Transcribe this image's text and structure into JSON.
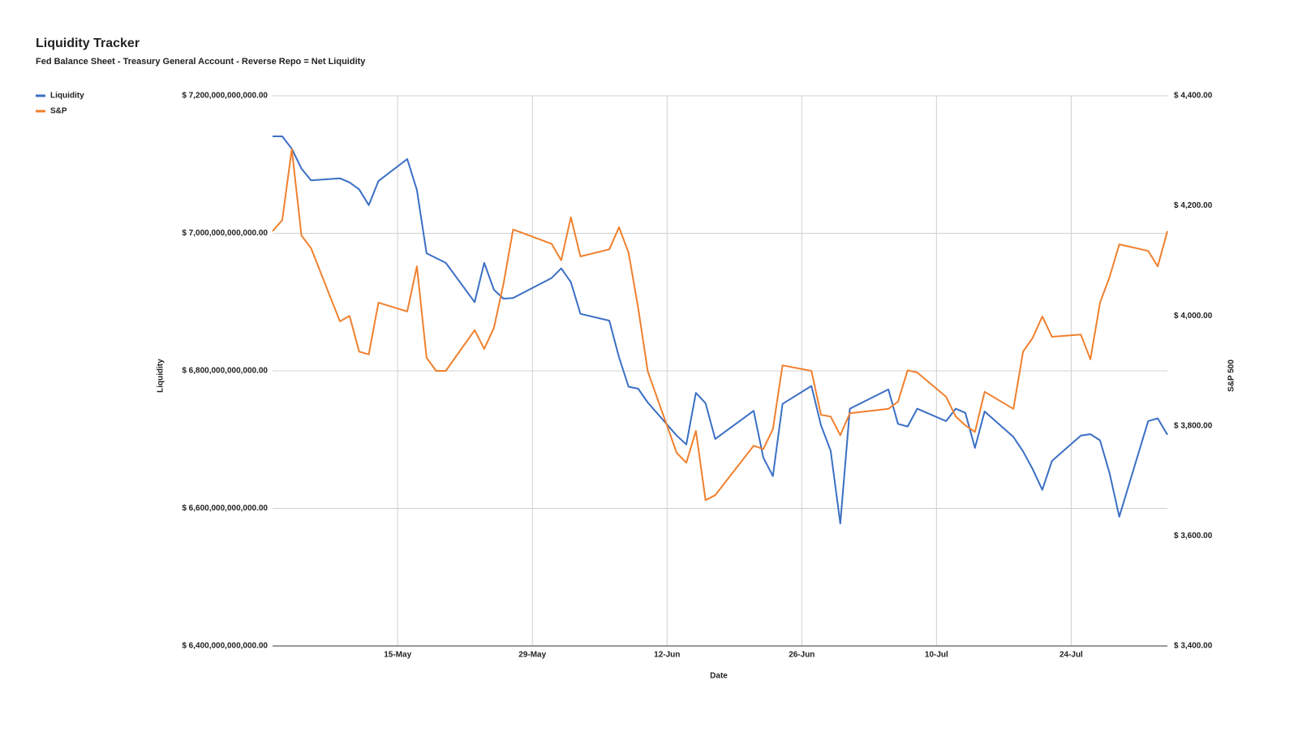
{
  "chart_data": {
    "type": "line",
    "title": "Liquidity Tracker",
    "subtitle": "Fed Balance Sheet - Treasury General Account - Reverse Repo = Net Liquidity",
    "x_label": "Date",
    "y_label": "Liquidity",
    "y2_label": "S&P 500",
    "legend": "left",
    "grid": true,
    "x": [
      "05-02",
      "05-03",
      "05-04",
      "05-05",
      "05-06",
      "05-09",
      "05-10",
      "05-11",
      "05-12",
      "05-13",
      "05-16",
      "05-17",
      "05-18",
      "05-19",
      "05-20",
      "05-23",
      "05-24",
      "05-25",
      "05-26",
      "05-27",
      "05-31",
      "06-01",
      "06-02",
      "06-03",
      "06-06",
      "06-07",
      "06-08",
      "06-09",
      "06-10",
      "06-13",
      "06-14",
      "06-15",
      "06-16",
      "06-17",
      "06-21",
      "06-22",
      "06-23",
      "06-24",
      "06-27",
      "06-28",
      "06-29",
      "06-30",
      "07-01",
      "07-05",
      "07-06",
      "07-07",
      "07-08",
      "07-11",
      "07-12",
      "07-13",
      "07-14",
      "07-15",
      "07-18",
      "07-19",
      "07-20",
      "07-21",
      "07-22",
      "07-25",
      "07-26",
      "07-27",
      "07-28",
      "07-29",
      "08-01",
      "08-02",
      "08-03"
    ],
    "xlim": [
      "05-02",
      "08-03"
    ],
    "xticks": [
      {
        "value": "05-15",
        "label": "15-May"
      },
      {
        "value": "05-29",
        "label": "29-May"
      },
      {
        "value": "06-12",
        "label": "12-Jun"
      },
      {
        "value": "06-26",
        "label": "26-Jun"
      },
      {
        "value": "07-10",
        "label": "10-Jul"
      },
      {
        "value": "07-24",
        "label": "24-Jul"
      }
    ],
    "ylim": [
      6400000000000,
      7200000000000
    ],
    "yticks": [
      {
        "value": 6400000000000,
        "label": "$ 6,400,000,000,000.00"
      },
      {
        "value": 6600000000000,
        "label": "$ 6,600,000,000,000.00"
      },
      {
        "value": 6800000000000,
        "label": "$ 6,800,000,000,000.00"
      },
      {
        "value": 7000000000000,
        "label": "$ 7,000,000,000,000.00"
      },
      {
        "value": 7200000000000,
        "label": "$ 7,200,000,000,000.00"
      }
    ],
    "y2lim": [
      3400,
      4400
    ],
    "y2ticks": [
      {
        "value": 3400,
        "label": "$ 3,400.00"
      },
      {
        "value": 3600,
        "label": "$ 3,600.00"
      },
      {
        "value": 3800,
        "label": "$ 3,800.00"
      },
      {
        "value": 4000,
        "label": "$ 4,000.00"
      },
      {
        "value": 4200,
        "label": "$ 4,200.00"
      },
      {
        "value": 4400,
        "label": "$ 4,400.00"
      }
    ],
    "series": [
      {
        "name": "Liquidity",
        "color": "#3b6fc5",
        "axis": "y",
        "values": [
          7141000000000,
          7141000000000,
          7123000000000,
          7094000000000,
          7077000000000,
          7080000000000,
          7074000000000,
          7064000000000,
          7041000000000,
          7076000000000,
          7108000000000,
          7063000000000,
          6971000000000,
          6964000000000,
          6957000000000,
          6900000000000,
          6957000000000,
          6918000000000,
          6905000000000,
          6906000000000,
          6935000000000,
          6949000000000,
          6929000000000,
          6883000000000,
          6873000000000,
          6820000000000,
          6777000000000,
          6774000000000,
          6754000000000,
          6706000000000,
          6693000000000,
          6768000000000,
          6753000000000,
          6701000000000,
          6742000000000,
          6674000000000,
          6647000000000,
          6752000000000,
          6778000000000,
          6721000000000,
          6684000000000,
          6578000000000,
          6745000000000,
          6773000000000,
          6723000000000,
          6719000000000,
          6745000000000,
          6727000000000,
          6745000000000,
          6739000000000,
          6688000000000,
          6741000000000,
          6704000000000,
          6683000000000,
          6657000000000,
          6627000000000,
          6669000000000,
          6706000000000,
          6708000000000,
          6699000000000,
          6651000000000,
          6588000000000,
          6727000000000,
          6731000000000,
          6707000000000
        ]
      },
      {
        "name": "S&P",
        "color": "#f0802e",
        "axis": "y2",
        "values": [
          4154,
          4174,
          4303,
          4146,
          4123,
          3990,
          4000,
          3935,
          3930,
          4024,
          4008,
          4090,
          3924,
          3900,
          3900,
          3974,
          3940,
          3978,
          4058,
          4157,
          4131,
          4101,
          4179,
          4108,
          4121,
          4161,
          4115,
          4014,
          3899,
          3751,
          3733,
          3791,
          3665,
          3674,
          3764,
          3758,
          3794,
          3910,
          3900,
          3820,
          3817,
          3783,
          3823,
          3831,
          3844,
          3901,
          3897,
          3853,
          3817,
          3801,
          3789,
          3862,
          3831,
          3935,
          3960,
          3999,
          3962,
          3966,
          3921,
          4024,
          4071,
          4130,
          4118,
          4090,
          4154
        ]
      }
    ]
  }
}
